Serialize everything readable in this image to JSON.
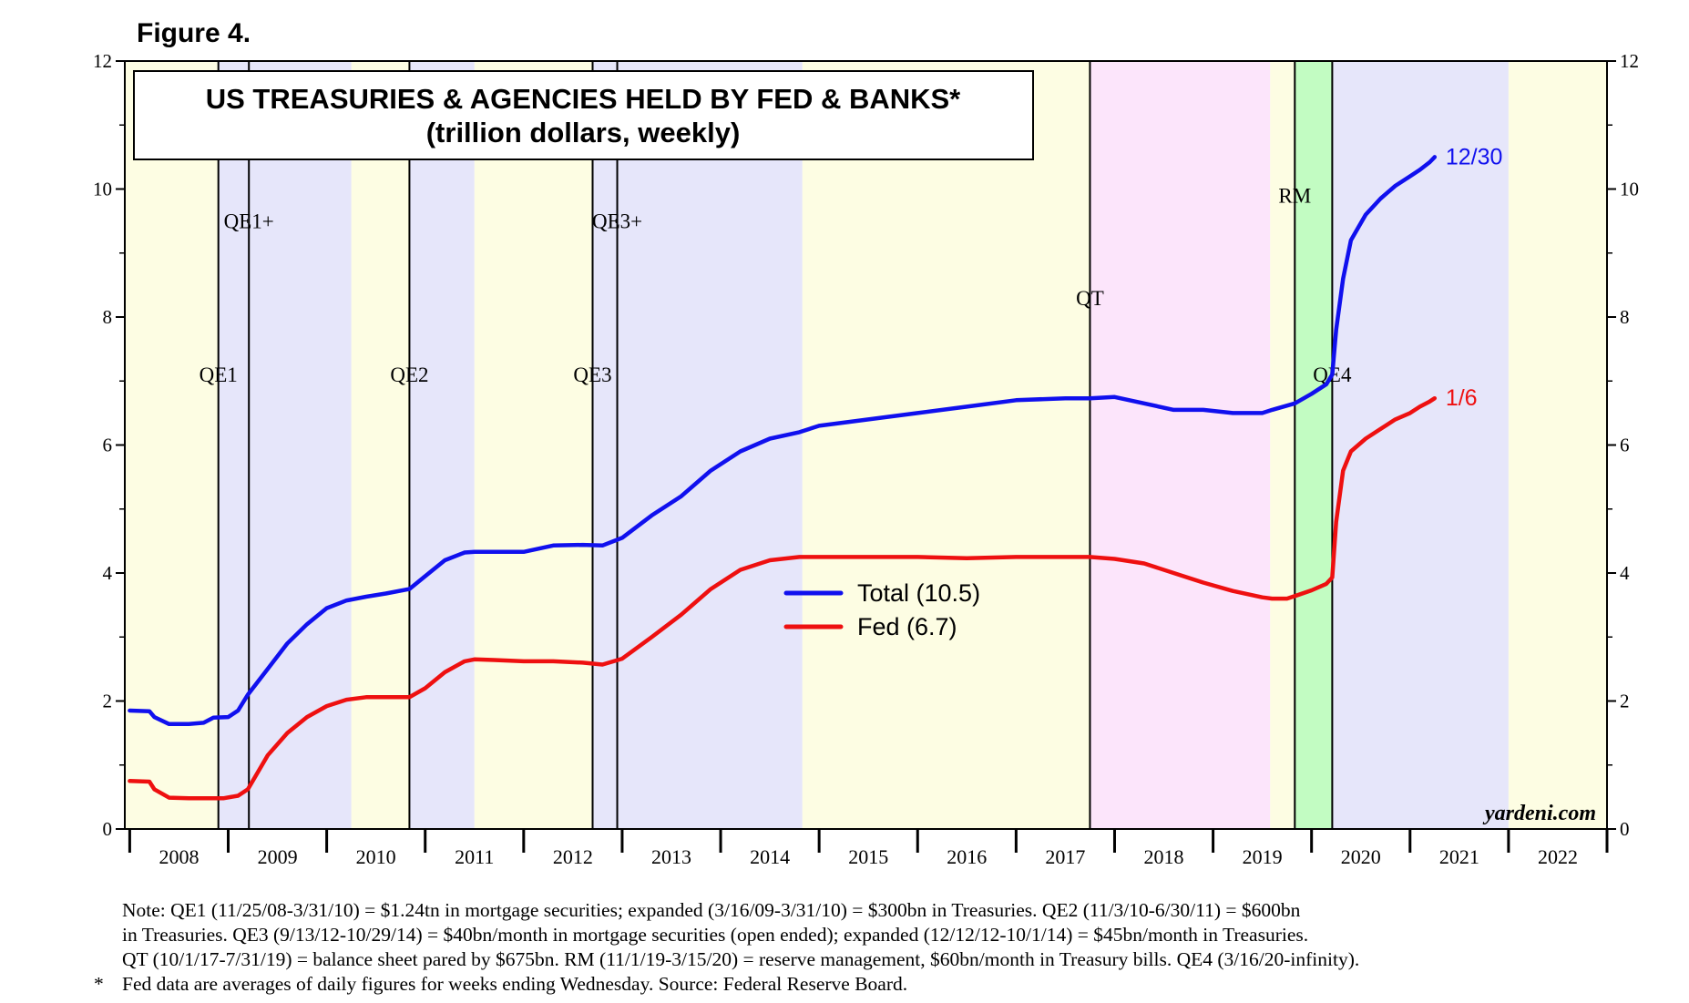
{
  "figure_label": "Figure 4.",
  "chart_data": {
    "type": "line",
    "title": "US TREASURIES & AGENCIES HELD BY FED & BANKS*",
    "subtitle": "(trillion dollars, weekly)",
    "ylim": [
      0,
      12
    ],
    "y_ticks": [
      "0",
      "2",
      "4",
      "6",
      "8",
      "10",
      "12"
    ],
    "x_range": [
      2007.95,
      2023.0
    ],
    "x_tick_labels": [
      "2008",
      "2009",
      "2010",
      "2011",
      "2012",
      "2013",
      "2014",
      "2015",
      "2016",
      "2017",
      "2018",
      "2019",
      "2020",
      "2021",
      "2022"
    ],
    "bands": [
      {
        "start": 2007.95,
        "end": 2008.9,
        "color": "#fdfde3"
      },
      {
        "start": 2008.9,
        "end": 2010.25,
        "color": "#e6e6fa"
      },
      {
        "start": 2010.25,
        "end": 2010.84,
        "color": "#fdfde3"
      },
      {
        "start": 2010.84,
        "end": 2011.5,
        "color": "#e6e6fa"
      },
      {
        "start": 2011.5,
        "end": 2012.7,
        "color": "#fdfde3"
      },
      {
        "start": 2012.7,
        "end": 2014.83,
        "color": "#e6e6fa"
      },
      {
        "start": 2014.83,
        "end": 2017.75,
        "color": "#fdfde3"
      },
      {
        "start": 2017.75,
        "end": 2019.58,
        "color": "#fce5fb"
      },
      {
        "start": 2019.58,
        "end": 2019.83,
        "color": "#fdfde3"
      },
      {
        "start": 2019.83,
        "end": 2020.21,
        "color": "#c2fcc2"
      },
      {
        "start": 2020.21,
        "end": 2022.0,
        "color": "#e6e6fa"
      },
      {
        "start": 2022.0,
        "end": 2023.0,
        "color": "#fdfde3"
      }
    ],
    "events": [
      {
        "label": "QE1",
        "date": 2008.9,
        "label_y": 7.1
      },
      {
        "label": "QE1+",
        "date": 2009.21,
        "label_y": 9.5
      },
      {
        "label": "QE2",
        "date": 2010.84,
        "label_y": 7.1
      },
      {
        "label": "QE3",
        "date": 2012.7,
        "label_y": 7.1
      },
      {
        "label": "QE3+",
        "date": 2012.95,
        "label_y": 9.5
      },
      {
        "label": "QT",
        "date": 2017.75,
        "label_y": 8.3
      },
      {
        "label": "RM",
        "date": 2019.83,
        "label_y": 9.9
      },
      {
        "label": "QE4",
        "date": 2020.21,
        "label_y": 7.1
      }
    ],
    "series": [
      {
        "name": "Total",
        "legend": "Total (10.5)",
        "color": "#1010ee",
        "end_label": "12/30",
        "x": [
          2008.0,
          2008.2,
          2008.25,
          2008.4,
          2008.6,
          2008.75,
          2008.85,
          2009.0,
          2009.1,
          2009.2,
          2009.4,
          2009.6,
          2009.8,
          2010.0,
          2010.2,
          2010.4,
          2010.6,
          2010.84,
          2011.0,
          2011.2,
          2011.4,
          2011.5,
          2011.7,
          2012.0,
          2012.3,
          2012.6,
          2012.8,
          2013.0,
          2013.3,
          2013.6,
          2013.9,
          2014.2,
          2014.5,
          2014.8,
          2015.0,
          2015.5,
          2016.0,
          2016.5,
          2017.0,
          2017.5,
          2017.75,
          2018.0,
          2018.3,
          2018.6,
          2018.9,
          2019.2,
          2019.5,
          2019.6,
          2019.83,
          2020.0,
          2020.15,
          2020.21,
          2020.25,
          2020.32,
          2020.4,
          2020.55,
          2020.7,
          2020.85,
          2021.0,
          2021.1,
          2021.2,
          2021.25
        ],
        "values": [
          1.85,
          1.84,
          1.75,
          1.64,
          1.64,
          1.66,
          1.74,
          1.75,
          1.85,
          2.1,
          2.5,
          2.9,
          3.2,
          3.45,
          3.57,
          3.63,
          3.68,
          3.75,
          3.95,
          4.2,
          4.32,
          4.33,
          4.33,
          4.33,
          4.43,
          4.44,
          4.43,
          4.55,
          4.9,
          5.2,
          5.6,
          5.9,
          6.1,
          6.2,
          6.3,
          6.4,
          6.5,
          6.6,
          6.7,
          6.73,
          6.73,
          6.75,
          6.65,
          6.55,
          6.55,
          6.5,
          6.5,
          6.55,
          6.65,
          6.8,
          6.95,
          7.1,
          7.8,
          8.6,
          9.2,
          9.6,
          9.85,
          10.05,
          10.2,
          10.3,
          10.42,
          10.5
        ]
      },
      {
        "name": "Fed",
        "legend": "Fed (6.7)",
        "color": "#ee1010",
        "end_label": "1/6",
        "x": [
          2008.0,
          2008.2,
          2008.25,
          2008.4,
          2008.6,
          2008.8,
          2008.95,
          2009.1,
          2009.2,
          2009.4,
          2009.6,
          2009.8,
          2010.0,
          2010.2,
          2010.4,
          2010.6,
          2010.84,
          2011.0,
          2011.2,
          2011.4,
          2011.5,
          2011.7,
          2012.0,
          2012.3,
          2012.6,
          2012.8,
          2013.0,
          2013.3,
          2013.6,
          2013.9,
          2014.2,
          2014.5,
          2014.8,
          2015.0,
          2015.5,
          2016.0,
          2016.5,
          2017.0,
          2017.5,
          2017.75,
          2018.0,
          2018.3,
          2018.6,
          2018.9,
          2019.2,
          2019.5,
          2019.6,
          2019.75,
          2019.83,
          2020.0,
          2020.15,
          2020.21,
          2020.25,
          2020.32,
          2020.4,
          2020.55,
          2020.7,
          2020.85,
          2021.0,
          2021.1,
          2021.2,
          2021.25
        ],
        "values": [
          0.75,
          0.74,
          0.62,
          0.49,
          0.48,
          0.48,
          0.48,
          0.52,
          0.62,
          1.15,
          1.5,
          1.75,
          1.92,
          2.02,
          2.06,
          2.06,
          2.06,
          2.2,
          2.45,
          2.62,
          2.65,
          2.64,
          2.62,
          2.62,
          2.6,
          2.57,
          2.66,
          3.0,
          3.35,
          3.75,
          4.05,
          4.2,
          4.25,
          4.25,
          4.25,
          4.25,
          4.23,
          4.25,
          4.25,
          4.25,
          4.22,
          4.15,
          4.0,
          3.85,
          3.72,
          3.62,
          3.6,
          3.6,
          3.64,
          3.73,
          3.83,
          3.93,
          4.8,
          5.6,
          5.9,
          6.1,
          6.25,
          6.4,
          6.5,
          6.6,
          6.68,
          6.73
        ]
      }
    ],
    "source": "yardeni.com"
  },
  "notes": {
    "line1": "Note: QE1 (11/25/08-3/31/10) = $1.24tn in mortgage securities; expanded (3/16/09-3/31/10) = $300bn in Treasuries. QE2 (11/3/10-6/30/11) = $600bn",
    "line2": "in Treasuries. QE3 (9/13/12-10/29/14) = $40bn/month in mortgage securities (open ended); expanded (12/12/12-10/1/14) = $45bn/month in Treasuries.",
    "line3": "QT (10/1/17-7/31/19) = balance sheet pared by $675bn. RM (11/1/19-3/15/20) = reserve management, $60bn/month in Treasury bills. QE4 (3/16/20-infinity).",
    "asterisk": "*",
    "line4": "Fed data are averages of daily figures for weeks ending Wednesday. Source: Federal Reserve Board."
  }
}
